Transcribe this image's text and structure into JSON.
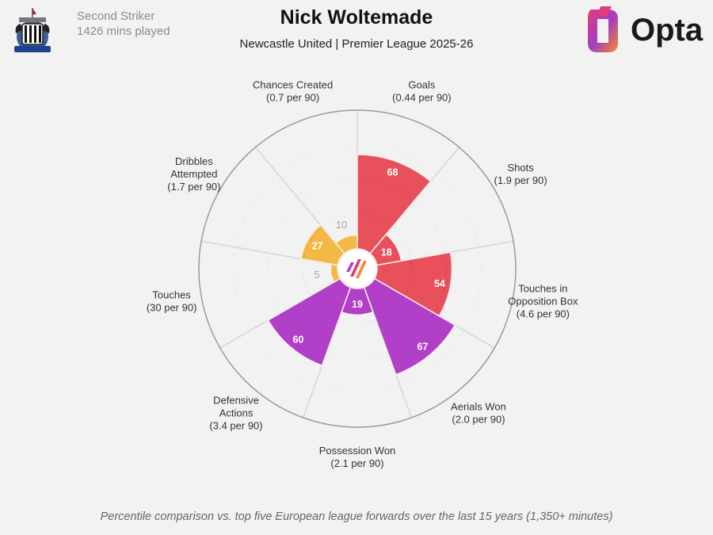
{
  "header": {
    "position": "Second Striker",
    "minutes": "1426 mins played",
    "player_name": "Nick Woltemade",
    "subtitle": "Newcastle United | Premier League 2025-26",
    "brand": "Opta"
  },
  "footnote": "Percentile comparison vs. top five European league forwards over the last 15 years (1,350+ minutes)",
  "colors": {
    "attacking": "#e8505b",
    "possession": "#f4b844",
    "defending": "#b23fc7",
    "background": "#f2f2f2",
    "grid": "#dcdcdc"
  },
  "chart_data": {
    "type": "polar-bar",
    "rmax": 100,
    "ring_labels": [
      "10",
      "5"
    ],
    "slices": [
      {
        "name": "Goals",
        "rate": "(0.44 per 90)",
        "percentile": 68,
        "group": "attacking",
        "label": "68"
      },
      {
        "name": "Shots",
        "rate": "(1.9 per 90)",
        "percentile": 18,
        "group": "attacking",
        "label": "18"
      },
      {
        "name": "Touches in Opposition Box",
        "name_lines": [
          "Touches in",
          "Opposition Box"
        ],
        "rate": "(4.6 per 90)",
        "percentile": 54,
        "group": "attacking",
        "label": "54"
      },
      {
        "name": "Aerials Won",
        "rate": "(2.0 per 90)",
        "percentile": 67,
        "group": "defending",
        "label": "67"
      },
      {
        "name": "Possession Won",
        "rate": "(2.1 per 90)",
        "percentile": 19,
        "group": "defending",
        "label": "19"
      },
      {
        "name": "Defensive Actions",
        "name_lines": [
          "Defensive",
          "Actions"
        ],
        "rate": "(3.4 per 90)",
        "percentile": 60,
        "group": "defending",
        "label": "60"
      },
      {
        "name": "Touches",
        "rate": "(30 per 90)",
        "percentile": 5,
        "group": "possession",
        "label": ""
      },
      {
        "name": "Dribbles Attempted",
        "name_lines": [
          "Dribbles",
          "Attempted"
        ],
        "rate": "(1.7 per 90)",
        "percentile": 27,
        "group": "possession",
        "label": "27"
      },
      {
        "name": "Chances Created",
        "rate": "(0.7 per 90)",
        "percentile": 10,
        "group": "possession",
        "label": ""
      }
    ]
  }
}
